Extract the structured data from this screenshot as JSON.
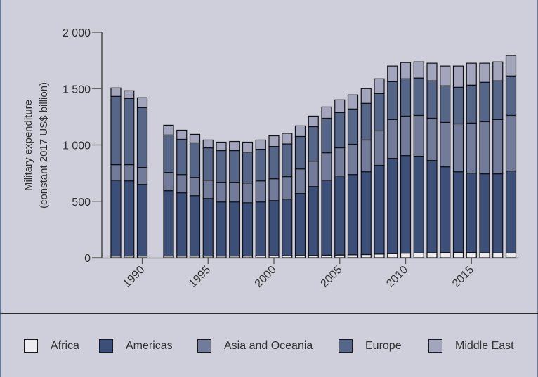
{
  "chart_data": {
    "type": "bar",
    "stacked": true,
    "title": "",
    "xlabel": "",
    "ylabel": "Military expenditure\n(constant 2017 US$ billion)",
    "ylabel_lines": [
      "Military expenditure",
      "(constant 2017 US$ billion)"
    ],
    "ylim": [
      0,
      2000
    ],
    "yticks": [
      0,
      500,
      1000,
      1500,
      2000
    ],
    "ytick_labels": [
      "0",
      "500",
      "1 000",
      "1 500",
      "2 000"
    ],
    "xticks": [
      1990,
      1995,
      2000,
      2005,
      2010,
      2015
    ],
    "xtick_labels": [
      "1990",
      "1995",
      "2000",
      "2005",
      "2010",
      "2015"
    ],
    "xlim": [
      1987,
      2019
    ],
    "grid": false,
    "legend_position": "bottom",
    "categories": [
      1988,
      1989,
      1990,
      1992,
      1993,
      1994,
      1995,
      1996,
      1997,
      1998,
      1999,
      2000,
      2001,
      2002,
      2003,
      2004,
      2005,
      2006,
      2007,
      2008,
      2009,
      2010,
      2011,
      2012,
      2013,
      2014,
      2015,
      2016,
      2017,
      2018
    ],
    "series": [
      {
        "name": "Africa",
        "color": "#ebebf0",
        "values": [
          15,
          15,
          15,
          15,
          15,
          15,
          15,
          15,
          15,
          15,
          16,
          17,
          18,
          19,
          20,
          22,
          24,
          26,
          28,
          32,
          36,
          40,
          42,
          44,
          46,
          47,
          46,
          44,
          42,
          41
        ]
      },
      {
        "name": "Americas",
        "color": "#3b4f78",
        "values": [
          672,
          666,
          635,
          579,
          560,
          535,
          510,
          479,
          479,
          472,
          478,
          489,
          501,
          550,
          611,
          665,
          701,
          711,
          734,
          787,
          845,
          866,
          858,
          818,
          760,
          715,
          704,
          700,
          702,
          728
        ]
      },
      {
        "name": "Asia and Oceania",
        "color": "#737b9a",
        "values": [
          138,
          144,
          150,
          162,
          162,
          162,
          162,
          175,
          175,
          175,
          187,
          194,
          200,
          218,
          225,
          244,
          250,
          269,
          282,
          306,
          344,
          350,
          362,
          375,
          394,
          425,
          444,
          462,
          481,
          493
        ]
      },
      {
        "name": "Europe",
        "color": "#566688",
        "values": [
          606,
          587,
          531,
          332,
          313,
          307,
          288,
          281,
          281,
          275,
          281,
          287,
          290,
          288,
          306,
          306,
          312,
          313,
          325,
          331,
          337,
          331,
          332,
          332,
          325,
          325,
          337,
          350,
          344,
          350
        ]
      },
      {
        "name": "Middle East",
        "color": "#a3a5bd",
        "values": [
          75,
          69,
          88,
          87,
          81,
          75,
          69,
          75,
          81,
          88,
          82,
          94,
          94,
          94,
          94,
          100,
          113,
          125,
          131,
          131,
          138,
          144,
          143,
          156,
          175,
          188,
          194,
          169,
          168,
          182
        ]
      }
    ]
  },
  "legend": {
    "items": [
      {
        "label": "Africa",
        "color": "#ebebf0"
      },
      {
        "label": "Americas",
        "color": "#3b4f78"
      },
      {
        "label": "Asia and Oceania",
        "color": "#737b9a"
      },
      {
        "label": "Europe",
        "color": "#566688"
      },
      {
        "label": "Middle East",
        "color": "#a3a5bd"
      }
    ]
  }
}
